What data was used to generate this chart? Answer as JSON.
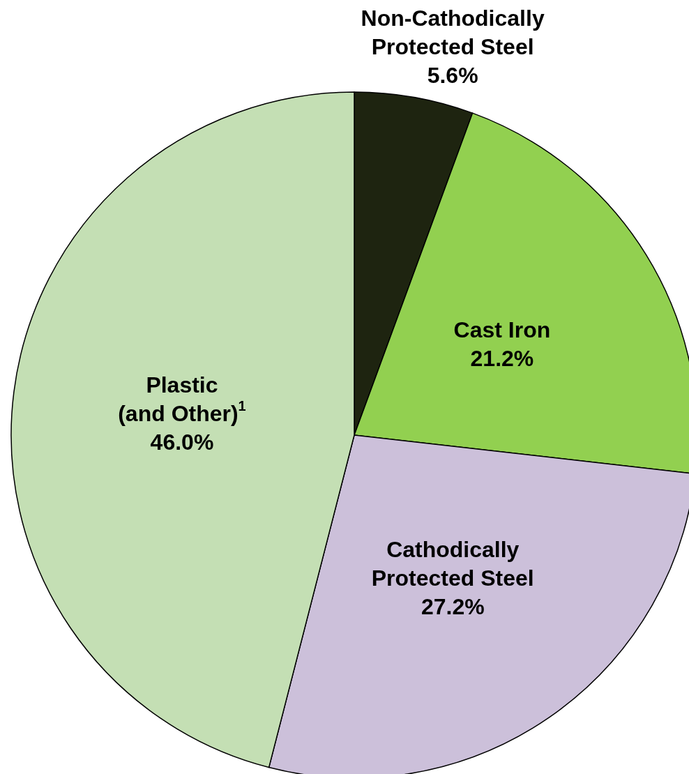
{
  "chart_data": {
    "type": "pie",
    "categories": [
      "Non-Cathodically Protected Steel",
      "Cast Iron",
      "Cathodically Protected Steel",
      "Plastic (and Other)$^{1}$"
    ],
    "values": [
      5.6,
      21.2,
      27.2,
      46.0
    ],
    "value_labels": [
      "5.6%",
      "21.2%",
      "27.2%",
      "46.0%"
    ],
    "colors": [
      "#1e2410",
      "#92d050",
      "#ccc0da",
      "#c4dfb4"
    ]
  }
}
